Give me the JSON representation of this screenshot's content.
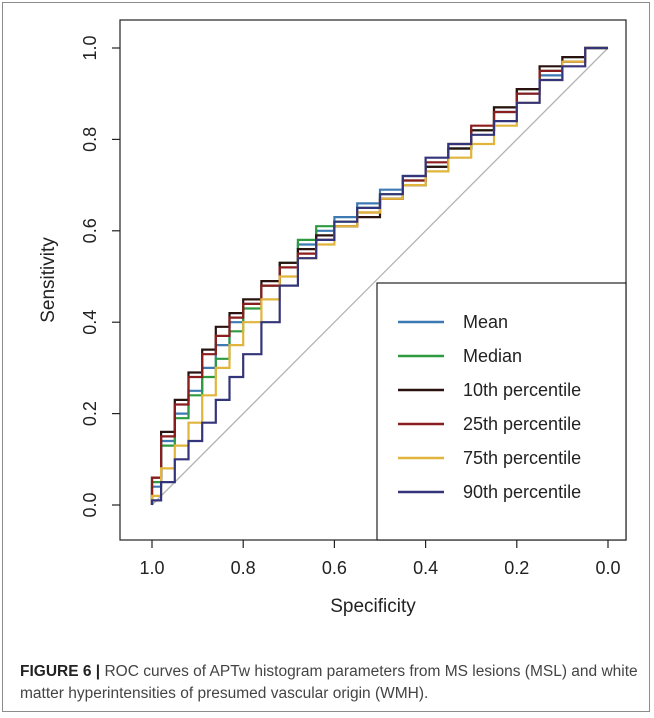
{
  "figure": {
    "caption_label": "FIGURE 6 |",
    "caption_text": " ROC curves of APTw histogram parameters from MS lesions (MSL) and white matter hyperintensities of presumed vascular origin (WMH)."
  },
  "chart_data": {
    "type": "line",
    "title": "",
    "xlabel": "Specificity",
    "ylabel": "Sensitivity",
    "xlim": [
      1.0,
      0.0
    ],
    "ylim": [
      0.0,
      1.0
    ],
    "x_reversed": true,
    "x_ticks": [
      "1.0",
      "0.8",
      "0.6",
      "0.4",
      "0.2",
      "0.0"
    ],
    "y_ticks": [
      "0.0",
      "0.2",
      "0.4",
      "0.6",
      "0.8",
      "1.0"
    ],
    "grid": false,
    "legend_position": "bottom-right",
    "reference_line": {
      "from": [
        1.0,
        0.0
      ],
      "to": [
        0.0,
        1.0
      ],
      "color": "#b3b3b3"
    },
    "series": [
      {
        "name": "Mean",
        "color": "#3d79b3",
        "points": [
          [
            1.0,
            0.0
          ],
          [
            0.98,
            0.04
          ],
          [
            0.95,
            0.14
          ],
          [
            0.92,
            0.2
          ],
          [
            0.89,
            0.25
          ],
          [
            0.86,
            0.3
          ],
          [
            0.83,
            0.35
          ],
          [
            0.8,
            0.4
          ],
          [
            0.76,
            0.44
          ],
          [
            0.72,
            0.48
          ],
          [
            0.68,
            0.53
          ],
          [
            0.64,
            0.57
          ],
          [
            0.6,
            0.6
          ],
          [
            0.55,
            0.63
          ],
          [
            0.5,
            0.66
          ],
          [
            0.45,
            0.69
          ],
          [
            0.4,
            0.72
          ],
          [
            0.35,
            0.74
          ],
          [
            0.3,
            0.78
          ],
          [
            0.25,
            0.82
          ],
          [
            0.2,
            0.86
          ],
          [
            0.15,
            0.9
          ],
          [
            0.1,
            0.94
          ],
          [
            0.05,
            0.97
          ],
          [
            0.02,
            1.0
          ],
          [
            0.0,
            1.0
          ]
        ]
      },
      {
        "name": "Median",
        "color": "#2e9a40",
        "points": [
          [
            1.0,
            0.0
          ],
          [
            0.98,
            0.05
          ],
          [
            0.95,
            0.13
          ],
          [
            0.92,
            0.19
          ],
          [
            0.89,
            0.24
          ],
          [
            0.86,
            0.28
          ],
          [
            0.83,
            0.32
          ],
          [
            0.8,
            0.38
          ],
          [
            0.76,
            0.43
          ],
          [
            0.72,
            0.48
          ],
          [
            0.68,
            0.53
          ],
          [
            0.64,
            0.58
          ],
          [
            0.6,
            0.61
          ],
          [
            0.55,
            0.62
          ],
          [
            0.5,
            0.65
          ],
          [
            0.45,
            0.68
          ],
          [
            0.4,
            0.71
          ],
          [
            0.35,
            0.74
          ],
          [
            0.3,
            0.78
          ],
          [
            0.25,
            0.82
          ],
          [
            0.2,
            0.87
          ],
          [
            0.15,
            0.91
          ],
          [
            0.1,
            0.95
          ],
          [
            0.05,
            0.98
          ],
          [
            0.02,
            1.0
          ],
          [
            0.0,
            1.0
          ]
        ]
      },
      {
        "name": "10th percentile",
        "color": "#2a1210",
        "points": [
          [
            1.0,
            0.0
          ],
          [
            0.98,
            0.06
          ],
          [
            0.95,
            0.16
          ],
          [
            0.92,
            0.23
          ],
          [
            0.89,
            0.29
          ],
          [
            0.86,
            0.34
          ],
          [
            0.83,
            0.39
          ],
          [
            0.8,
            0.42
          ],
          [
            0.76,
            0.45
          ],
          [
            0.72,
            0.49
          ],
          [
            0.68,
            0.53
          ],
          [
            0.64,
            0.56
          ],
          [
            0.6,
            0.59
          ],
          [
            0.55,
            0.61
          ],
          [
            0.5,
            0.63
          ],
          [
            0.45,
            0.67
          ],
          [
            0.4,
            0.7
          ],
          [
            0.35,
            0.74
          ],
          [
            0.3,
            0.78
          ],
          [
            0.25,
            0.82
          ],
          [
            0.2,
            0.87
          ],
          [
            0.15,
            0.91
          ],
          [
            0.1,
            0.96
          ],
          [
            0.05,
            0.98
          ],
          [
            0.02,
            1.0
          ],
          [
            0.0,
            1.0
          ]
        ]
      },
      {
        "name": "25th percentile",
        "color": "#8a1d1d",
        "points": [
          [
            1.0,
            0.0
          ],
          [
            0.98,
            0.06
          ],
          [
            0.95,
            0.15
          ],
          [
            0.92,
            0.22
          ],
          [
            0.89,
            0.28
          ],
          [
            0.86,
            0.33
          ],
          [
            0.83,
            0.37
          ],
          [
            0.8,
            0.41
          ],
          [
            0.76,
            0.44
          ],
          [
            0.72,
            0.48
          ],
          [
            0.68,
            0.52
          ],
          [
            0.64,
            0.55
          ],
          [
            0.6,
            0.58
          ],
          [
            0.55,
            0.61
          ],
          [
            0.5,
            0.64
          ],
          [
            0.45,
            0.67
          ],
          [
            0.4,
            0.71
          ],
          [
            0.35,
            0.75
          ],
          [
            0.3,
            0.79
          ],
          [
            0.25,
            0.83
          ],
          [
            0.2,
            0.86
          ],
          [
            0.15,
            0.9
          ],
          [
            0.1,
            0.95
          ],
          [
            0.05,
            0.97
          ],
          [
            0.02,
            1.0
          ],
          [
            0.0,
            1.0
          ]
        ]
      },
      {
        "name": "75th percentile",
        "color": "#e1b43c",
        "points": [
          [
            1.0,
            0.0
          ],
          [
            0.98,
            0.02
          ],
          [
            0.95,
            0.08
          ],
          [
            0.92,
            0.13
          ],
          [
            0.89,
            0.18
          ],
          [
            0.86,
            0.24
          ],
          [
            0.83,
            0.3
          ],
          [
            0.8,
            0.35
          ],
          [
            0.76,
            0.4
          ],
          [
            0.72,
            0.45
          ],
          [
            0.68,
            0.5
          ],
          [
            0.64,
            0.54
          ],
          [
            0.6,
            0.57
          ],
          [
            0.55,
            0.61
          ],
          [
            0.5,
            0.64
          ],
          [
            0.45,
            0.67
          ],
          [
            0.4,
            0.7
          ],
          [
            0.35,
            0.73
          ],
          [
            0.3,
            0.76
          ],
          [
            0.25,
            0.79
          ],
          [
            0.2,
            0.83
          ],
          [
            0.15,
            0.88
          ],
          [
            0.1,
            0.93
          ],
          [
            0.05,
            0.97
          ],
          [
            0.02,
            1.0
          ],
          [
            0.0,
            1.0
          ]
        ]
      },
      {
        "name": "90th percentile",
        "color": "#34347a",
        "points": [
          [
            1.0,
            0.0
          ],
          [
            0.98,
            0.01
          ],
          [
            0.95,
            0.05
          ],
          [
            0.92,
            0.1
          ],
          [
            0.89,
            0.14
          ],
          [
            0.86,
            0.18
          ],
          [
            0.83,
            0.23
          ],
          [
            0.8,
            0.28
          ],
          [
            0.76,
            0.33
          ],
          [
            0.72,
            0.4
          ],
          [
            0.68,
            0.48
          ],
          [
            0.64,
            0.54
          ],
          [
            0.6,
            0.58
          ],
          [
            0.55,
            0.62
          ],
          [
            0.5,
            0.65
          ],
          [
            0.45,
            0.68
          ],
          [
            0.4,
            0.72
          ],
          [
            0.35,
            0.76
          ],
          [
            0.3,
            0.79
          ],
          [
            0.25,
            0.81
          ],
          [
            0.2,
            0.84
          ],
          [
            0.15,
            0.88
          ],
          [
            0.1,
            0.93
          ],
          [
            0.05,
            0.96
          ],
          [
            0.02,
            1.0
          ],
          [
            0.0,
            1.0
          ]
        ]
      }
    ]
  }
}
